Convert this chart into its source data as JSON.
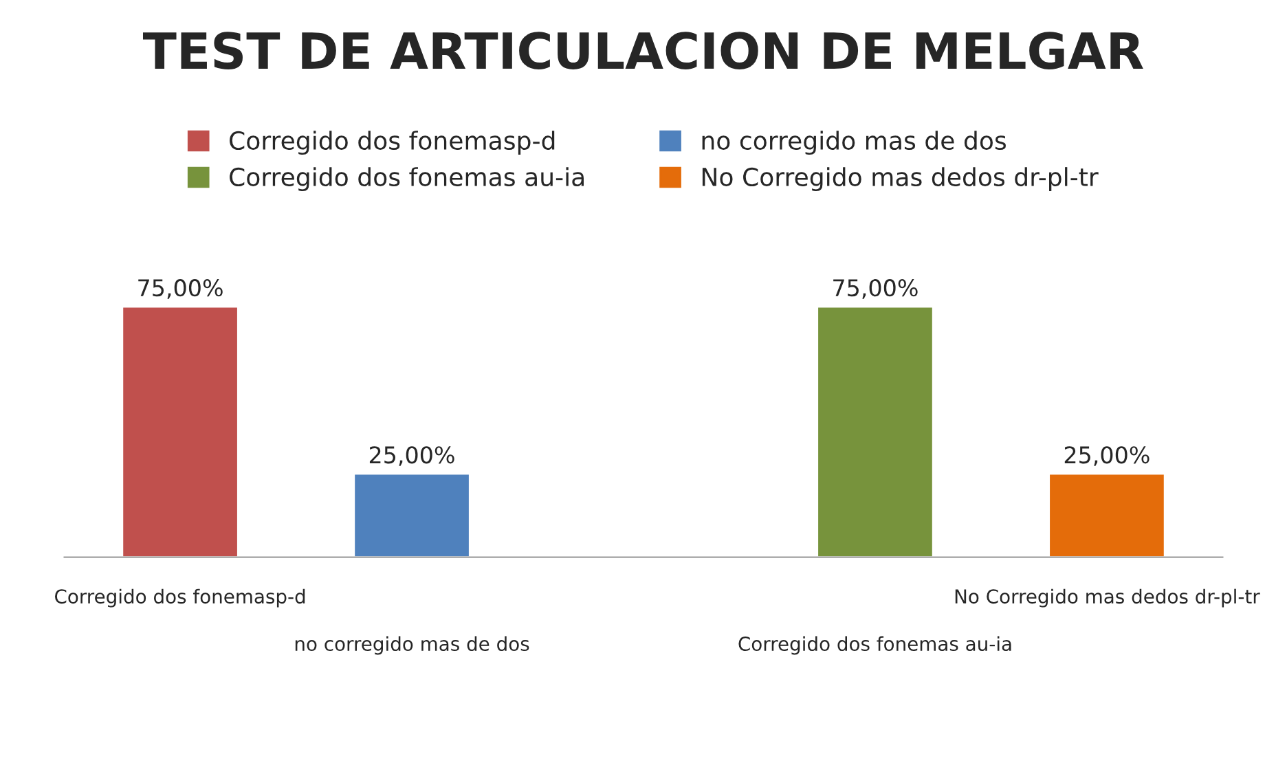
{
  "chart_data": {
    "type": "bar",
    "title": "TEST DE ARTICULACION DE MELGAR",
    "categories": [
      "Corregido dos fonemasp-d",
      "no corregido mas de dos",
      null,
      "Corregido dos fonemas au-ia",
      "No Corregido mas dedos dr-pl-tr"
    ],
    "series": [
      {
        "name": "Corregido dos fonemasp-d",
        "color": "#c0504d",
        "values": [
          75,
          null,
          null,
          null,
          null
        ],
        "value_labels": [
          "75,00%",
          null,
          null,
          null,
          null
        ]
      },
      {
        "name": "no corregido mas de dos",
        "color": "#4f81bd",
        "values": [
          null,
          25,
          null,
          null,
          null
        ],
        "value_labels": [
          null,
          "25,00%",
          null,
          null,
          null
        ]
      },
      {
        "name": "Corregido dos fonemas au-ia",
        "color": "#77933c",
        "values": [
          null,
          null,
          null,
          75,
          null
        ],
        "value_labels": [
          null,
          null,
          null,
          "75,00%",
          null
        ]
      },
      {
        "name": "No Corregido mas dedos dr-pl-tr",
        "color": "#e46c0a",
        "values": [
          null,
          null,
          null,
          null,
          25
        ],
        "value_labels": [
          null,
          null,
          null,
          null,
          "25,00%"
        ]
      }
    ],
    "legend": "top",
    "grid": false,
    "tick_labels": "x"
  }
}
